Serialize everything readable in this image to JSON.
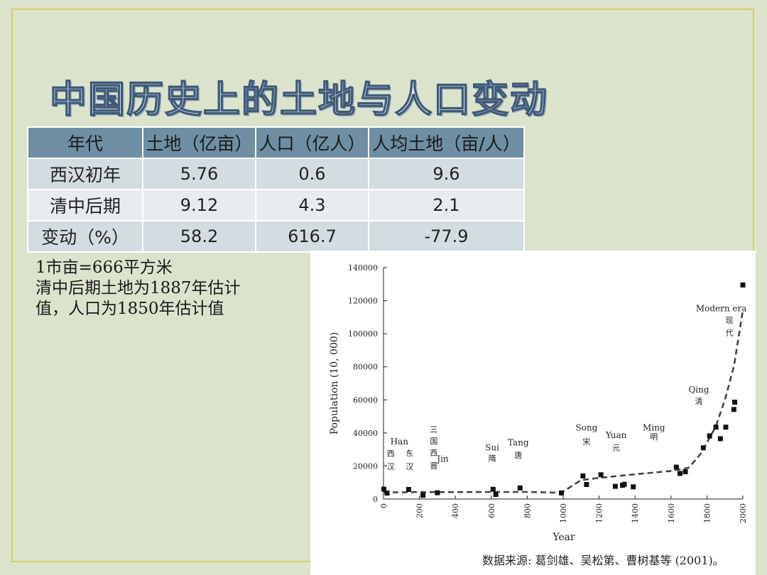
{
  "slide": {
    "title": "中国历史上的土地与人口变动",
    "table": {
      "headers": [
        "年代",
        "土地（亿亩）",
        "人口（亿人）",
        "人均土地（亩/人）"
      ],
      "rows": [
        [
          "西汉初年",
          "5.76",
          "0.6",
          "9.6"
        ],
        [
          "清中后期",
          "9.12",
          "4.3",
          "2.1"
        ],
        [
          "变动（%）",
          "58.2",
          "616.7",
          "-77.9"
        ]
      ]
    },
    "notes": [
      "1市亩=666平方米",
      "清中后期土地为1887年估计",
      "值，人口为1850年估计值"
    ],
    "source": "数据来源: 葛剑雄、吴松第、曹树基等 (2001)。"
  },
  "chart_data": {
    "type": "scatter",
    "title": "",
    "xlabel": "Year",
    "ylabel": "Population (10, 000)",
    "xlim": [
      0,
      2000
    ],
    "ylim": [
      0,
      140000
    ],
    "xticks": [
      "0",
      "200",
      "400",
      "600",
      "800",
      "1000",
      "1200",
      "1400",
      "1600",
      "1800",
      "2000"
    ],
    "yticks": [
      "0",
      "20000",
      "40000",
      "60000",
      "80000",
      "100000",
      "120000",
      "140000"
    ],
    "points": [
      {
        "x": 2,
        "y": 6000
      },
      {
        "x": 20,
        "y": 3600
      },
      {
        "x": 140,
        "y": 5800
      },
      {
        "x": 220,
        "y": 2300
      },
      {
        "x": 300,
        "y": 3800
      },
      {
        "x": 610,
        "y": 5900
      },
      {
        "x": 625,
        "y": 2800
      },
      {
        "x": 760,
        "y": 6700
      },
      {
        "x": 990,
        "y": 3700
      },
      {
        "x": 1110,
        "y": 14000
      },
      {
        "x": 1130,
        "y": 8800
      },
      {
        "x": 1210,
        "y": 14700
      },
      {
        "x": 1290,
        "y": 7700
      },
      {
        "x": 1330,
        "y": 8300
      },
      {
        "x": 1340,
        "y": 8900
      },
      {
        "x": 1390,
        "y": 7400
      },
      {
        "x": 1630,
        "y": 19300
      },
      {
        "x": 1650,
        "y": 15500
      },
      {
        "x": 1680,
        "y": 16500
      },
      {
        "x": 1780,
        "y": 31000
      },
      {
        "x": 1815,
        "y": 38200
      },
      {
        "x": 1850,
        "y": 43500
      },
      {
        "x": 1875,
        "y": 36500
      },
      {
        "x": 1905,
        "y": 43500
      },
      {
        "x": 1950,
        "y": 54200
      },
      {
        "x": 1955,
        "y": 58600
      },
      {
        "x": 2000,
        "y": 129500
      }
    ],
    "trend": {
      "x": [
        0,
        200,
        400,
        600,
        800,
        950,
        1000,
        1100,
        1200,
        1400,
        1600,
        1700,
        1770,
        1850,
        1900,
        1950,
        2000
      ],
      "y": [
        4000,
        4200,
        4200,
        4300,
        4300,
        3900,
        4500,
        11500,
        12800,
        15000,
        17000,
        19000,
        28000,
        44000,
        60000,
        80000,
        114000
      ]
    },
    "annotations": [
      {
        "label": "Han",
        "x": 88,
        "y": 33000
      },
      {
        "label": "西",
        "x": 40,
        "y": 26000
      },
      {
        "label": "汉",
        "x": 40,
        "y": 18000
      },
      {
        "label": "东",
        "x": 145,
        "y": 26000
      },
      {
        "label": "汉",
        "x": 145,
        "y": 18000
      },
      {
        "label": "三",
        "x": 280,
        "y": 40500
      },
      {
        "label": "国",
        "x": 280,
        "y": 33500
      },
      {
        "label": "西",
        "x": 280,
        "y": 26500
      },
      {
        "label": "晋",
        "x": 280,
        "y": 18500
      },
      {
        "label": "Jin",
        "x": 330,
        "y": 22500
      },
      {
        "label": "Sui",
        "x": 605,
        "y": 29500
      },
      {
        "label": "隋",
        "x": 605,
        "y": 23000
      },
      {
        "label": "Tang",
        "x": 750,
        "y": 32500
      },
      {
        "label": "唐",
        "x": 750,
        "y": 25000
      },
      {
        "label": "Song",
        "x": 1130,
        "y": 41500
      },
      {
        "label": "宋",
        "x": 1130,
        "y": 33000
      },
      {
        "label": "Yuan",
        "x": 1295,
        "y": 37000
      },
      {
        "label": "元",
        "x": 1295,
        "y": 29500
      },
      {
        "label": "Ming",
        "x": 1505,
        "y": 41500
      },
      {
        "label": "明",
        "x": 1505,
        "y": 36000
      },
      {
        "label": "Qing",
        "x": 1755,
        "y": 64500
      },
      {
        "label": "清",
        "x": 1755,
        "y": 57500
      },
      {
        "label": "Modern era",
        "x": 1880,
        "y": 113500
      },
      {
        "label": "现",
        "x": 1925,
        "y": 106500
      },
      {
        "label": "代",
        "x": 1925,
        "y": 99000
      }
    ]
  }
}
